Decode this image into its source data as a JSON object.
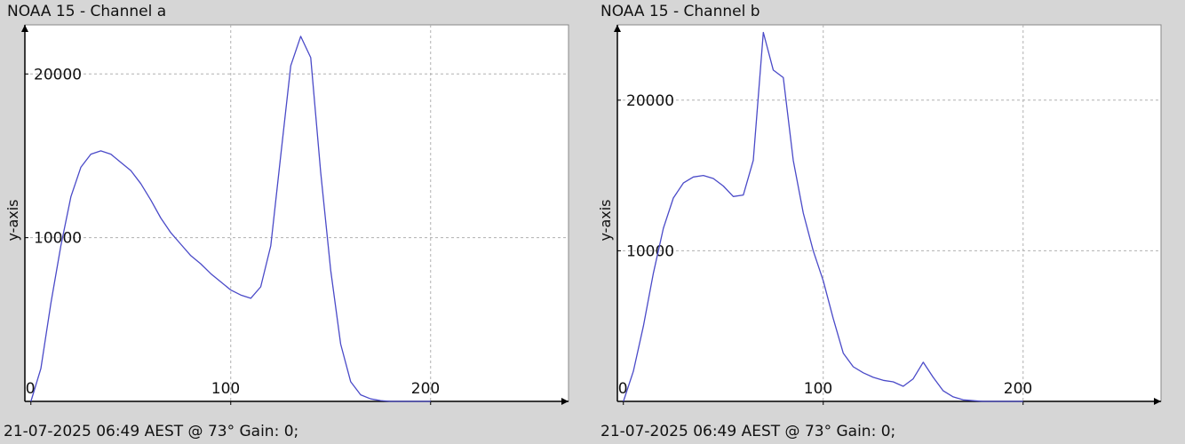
{
  "colors": {
    "background": "#d6d6d6",
    "plot_background": "#ffffff",
    "line": "#4a4ac8",
    "grid": "#b0b0b0",
    "axis": "#000000",
    "text": "#111111"
  },
  "chart_data": [
    {
      "type": "line",
      "title": "NOAA 15 - Channel a",
      "footer": "21-07-2025 06:49 AEST @ 73° Gain: 0;",
      "ylabel": "y-axis",
      "xlabel": "",
      "xlim": [
        -3,
        269
      ],
      "ylim": [
        0,
        23000
      ],
      "x_ticks": [
        0,
        100,
        200
      ],
      "y_ticks": [
        10000,
        20000
      ],
      "grid": true,
      "series": [
        {
          "x": [
            0,
            5,
            10,
            15,
            20,
            25,
            30,
            35,
            40,
            45,
            50,
            55,
            60,
            65,
            70,
            75,
            80,
            85,
            90,
            95,
            100,
            105,
            110,
            115,
            120,
            125,
            130,
            135,
            140,
            145,
            150,
            155,
            160,
            165,
            170,
            175,
            180,
            185,
            190,
            195,
            200
          ],
          "values": [
            0,
            2000,
            6000,
            9500,
            12500,
            14300,
            15100,
            15300,
            15100,
            14600,
            14100,
            13300,
            12300,
            11200,
            10300,
            9600,
            8900,
            8400,
            7800,
            7300,
            6800,
            6500,
            6300,
            7000,
            9500,
            15000,
            20500,
            22300,
            21000,
            14000,
            8000,
            3500,
            1200,
            400,
            150,
            50,
            0,
            0,
            0,
            0,
            0
          ]
        }
      ]
    },
    {
      "type": "line",
      "title": "NOAA 15 - Channel b",
      "footer": "21-07-2025 06:49 AEST @ 73° Gain: 0;",
      "ylabel": "y-axis",
      "xlabel": "",
      "xlim": [
        -3,
        269
      ],
      "ylim": [
        0,
        25000
      ],
      "x_ticks": [
        0,
        100,
        200
      ],
      "y_ticks": [
        10000,
        20000
      ],
      "grid": true,
      "series": [
        {
          "x": [
            0,
            5,
            10,
            15,
            20,
            25,
            30,
            35,
            40,
            45,
            50,
            55,
            60,
            65,
            70,
            75,
            80,
            85,
            90,
            95,
            100,
            105,
            110,
            115,
            120,
            125,
            130,
            135,
            140,
            145,
            150,
            155,
            160,
            165,
            170,
            175,
            180,
            185,
            190,
            195,
            200
          ],
          "values": [
            0,
            2000,
            5000,
            8500,
            11500,
            13500,
            14500,
            14900,
            15000,
            14800,
            14300,
            13600,
            13700,
            16000,
            24500,
            22000,
            21500,
            16000,
            12500,
            10000,
            8000,
            5500,
            3200,
            2300,
            1900,
            1600,
            1400,
            1300,
            1000,
            1500,
            2600,
            1600,
            700,
            300,
            100,
            50,
            0,
            0,
            0,
            0,
            0
          ]
        }
      ]
    }
  ]
}
